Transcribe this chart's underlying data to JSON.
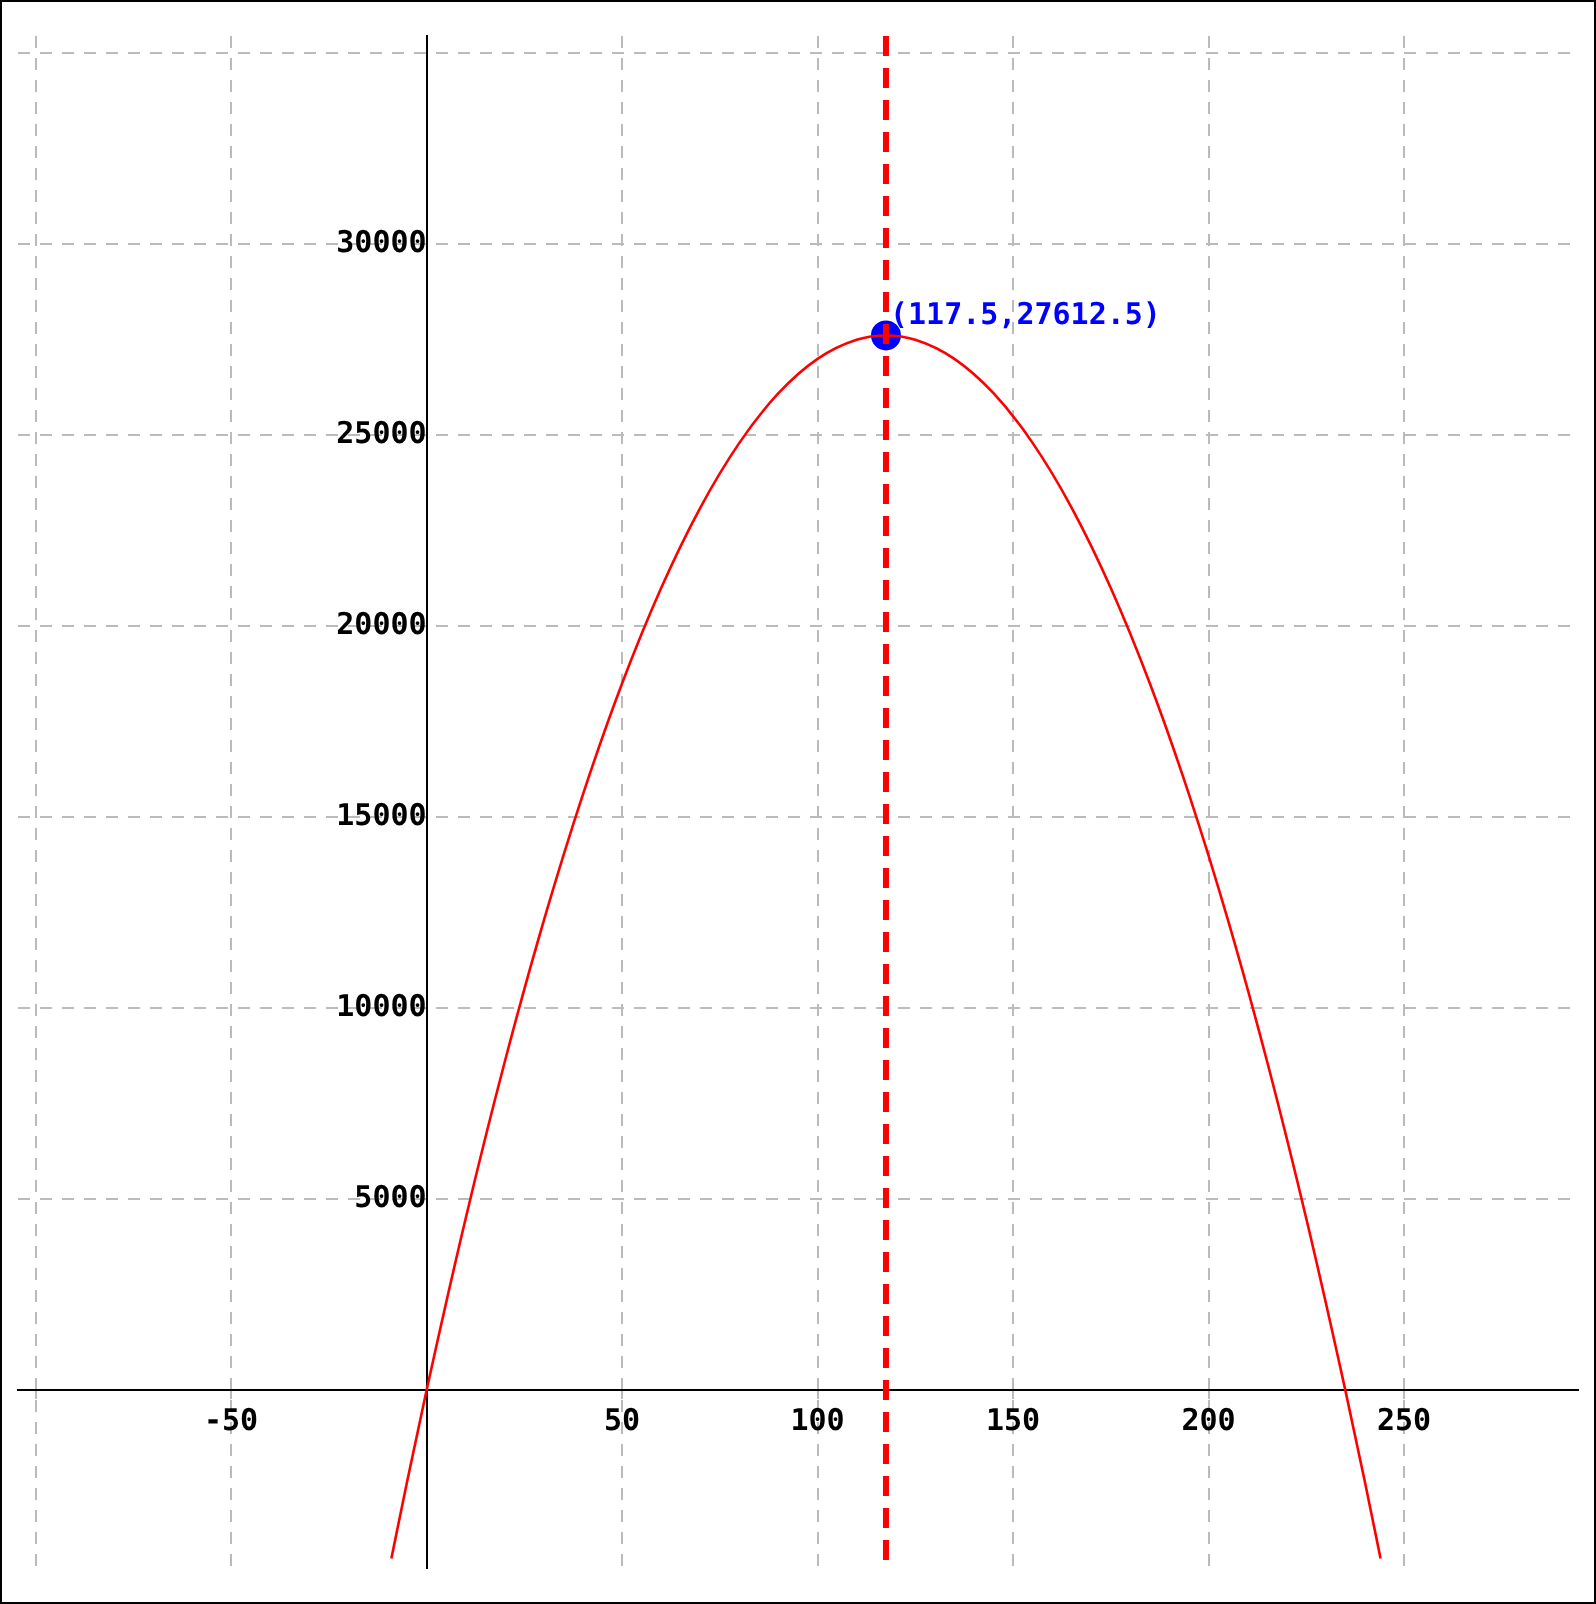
{
  "chart_data": {
    "type": "line",
    "xlim": [
      -104.5,
      294.5
    ],
    "ylim": [
      -4650,
      35450
    ],
    "xticks": [
      {
        "value": -100,
        "label": null
      },
      -50,
      {
        "value": 0,
        "label": null
      },
      50,
      100,
      150,
      200,
      250
    ],
    "yticks": [
      {
        "value": 0,
        "label": null
      },
      5000,
      10000,
      15000,
      20000,
      25000,
      30000,
      {
        "value": 35000,
        "label": null
      }
    ],
    "grid": true,
    "series": [
      {
        "color": "#ff0000",
        "marker": "none",
        "x": [
          -9,
          -5,
          0,
          10,
          20,
          30,
          40,
          50,
          60,
          70,
          80,
          90,
          100,
          110,
          117.5,
          125,
          135,
          145,
          155,
          165,
          175,
          185,
          195,
          205,
          215,
          225,
          235,
          240,
          244
        ],
        "values": [
          -4400,
          -2400,
          0,
          4500,
          8600,
          12300,
          15600,
          18500,
          21000,
          23100,
          24800,
          26100,
          27000,
          27500,
          27612.5,
          27500,
          27000,
          26100,
          24800,
          23100,
          21000,
          18500,
          15600,
          12300,
          8600,
          4500,
          0,
          -2400,
          -4400
        ]
      },
      {
        "type": "scatter",
        "color": "#0000ff",
        "marker": "circle",
        "x": [
          117.5
        ],
        "values": [
          27612.5
        ]
      }
    ],
    "ref_lines": [
      {
        "axis": "x",
        "value": 117.5,
        "color": "#ff0000",
        "line_style": "dashed"
      }
    ],
    "annotations": [
      {
        "text": "(117.5,27612.5)",
        "x": 117.5,
        "y": 27612.5
      }
    ]
  }
}
